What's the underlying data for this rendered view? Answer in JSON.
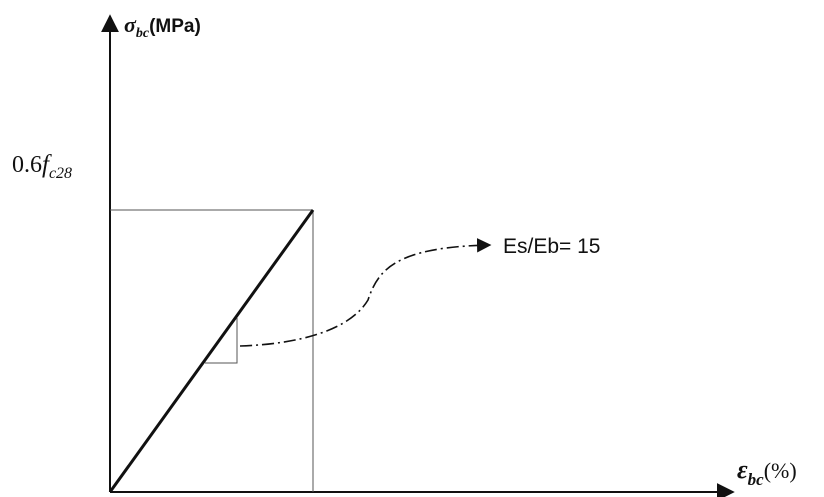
{
  "y_axis": {
    "symbol": "σ",
    "subscript": "bc",
    "unit": "(MPa)"
  },
  "x_axis": {
    "symbol": "ε",
    "subscript": "bc",
    "unit": "(%)"
  },
  "y_marker": {
    "prefix": "0.6",
    "symbol": "f",
    "subscript": "c28"
  },
  "annotation": {
    "text": "Es/Eb= 15"
  },
  "colors": {
    "lines": "#111111",
    "thin_lines": "#555555"
  }
}
